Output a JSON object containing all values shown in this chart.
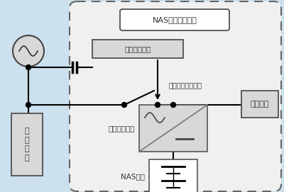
{
  "bg_color": "#cce0ee",
  "outer_fill": "#f0f0f0",
  "nas_system_label": "NAS電池システム",
  "detection_label": "瞬低検出回路",
  "switch_label": "高速切換スイッチ",
  "converter_label": "交直変換装置",
  "nas_battery_label": "NAS電池",
  "load_general_label": "一\n般\n負\n荷",
  "load_important_label": "重要負荷",
  "white": "#ffffff",
  "light_gray": "#d8d8d8",
  "mid_gray": "#c0c0c0",
  "dark": "#333333",
  "border": "#555555"
}
